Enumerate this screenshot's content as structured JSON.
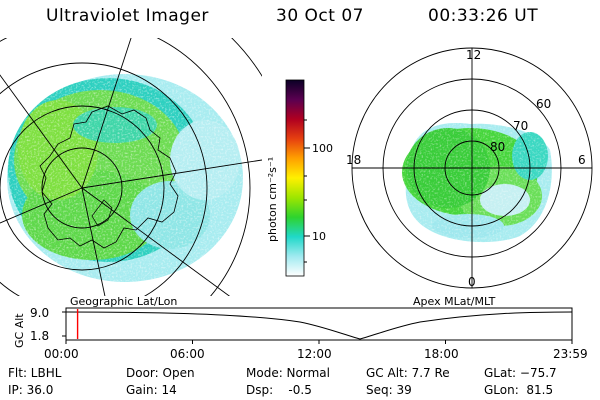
{
  "header": {
    "title": "Ultraviolet Imager",
    "date": "30 Oct 07",
    "time": "00:33:26 UT"
  },
  "colorbar": {
    "label": "photon cm⁻²s⁻¹",
    "ticks": [
      "100",
      "10"
    ],
    "colors": [
      "#0b0026",
      "#5a0050",
      "#b00020",
      "#e64010",
      "#ffa000",
      "#fff000",
      "#9ee600",
      "#2ed32e",
      "#20d8c8",
      "#a0eaf0",
      "#ffffff"
    ]
  },
  "left_map": {
    "caption": "Geographic Lat/Lon"
  },
  "right_map": {
    "caption": "Apex MLat/MLT",
    "mlt_labels": [
      "12",
      "18",
      "6",
      "0"
    ],
    "lat_labels": [
      "60",
      "70",
      "80"
    ]
  },
  "timeline": {
    "ylabel": "GC Alt",
    "yticks": [
      "9.0",
      "1.8"
    ],
    "xticks": [
      "00:00",
      "06:00",
      "12:00",
      "18:00",
      "23:59"
    ],
    "current_marker": "00:33"
  },
  "info": {
    "col1": [
      "Flt: LBHL",
      "IP: 36.0"
    ],
    "col2": [
      "Door: Open",
      "Gain: 14"
    ],
    "col3": [
      "Mode: Normal",
      "Dsp:    -0.5"
    ],
    "col4": [
      "GC Alt: 7.7 Re",
      "Seq: 39"
    ],
    "col5": [
      "GLat: −75.7",
      "GLon:  81.5"
    ]
  }
}
